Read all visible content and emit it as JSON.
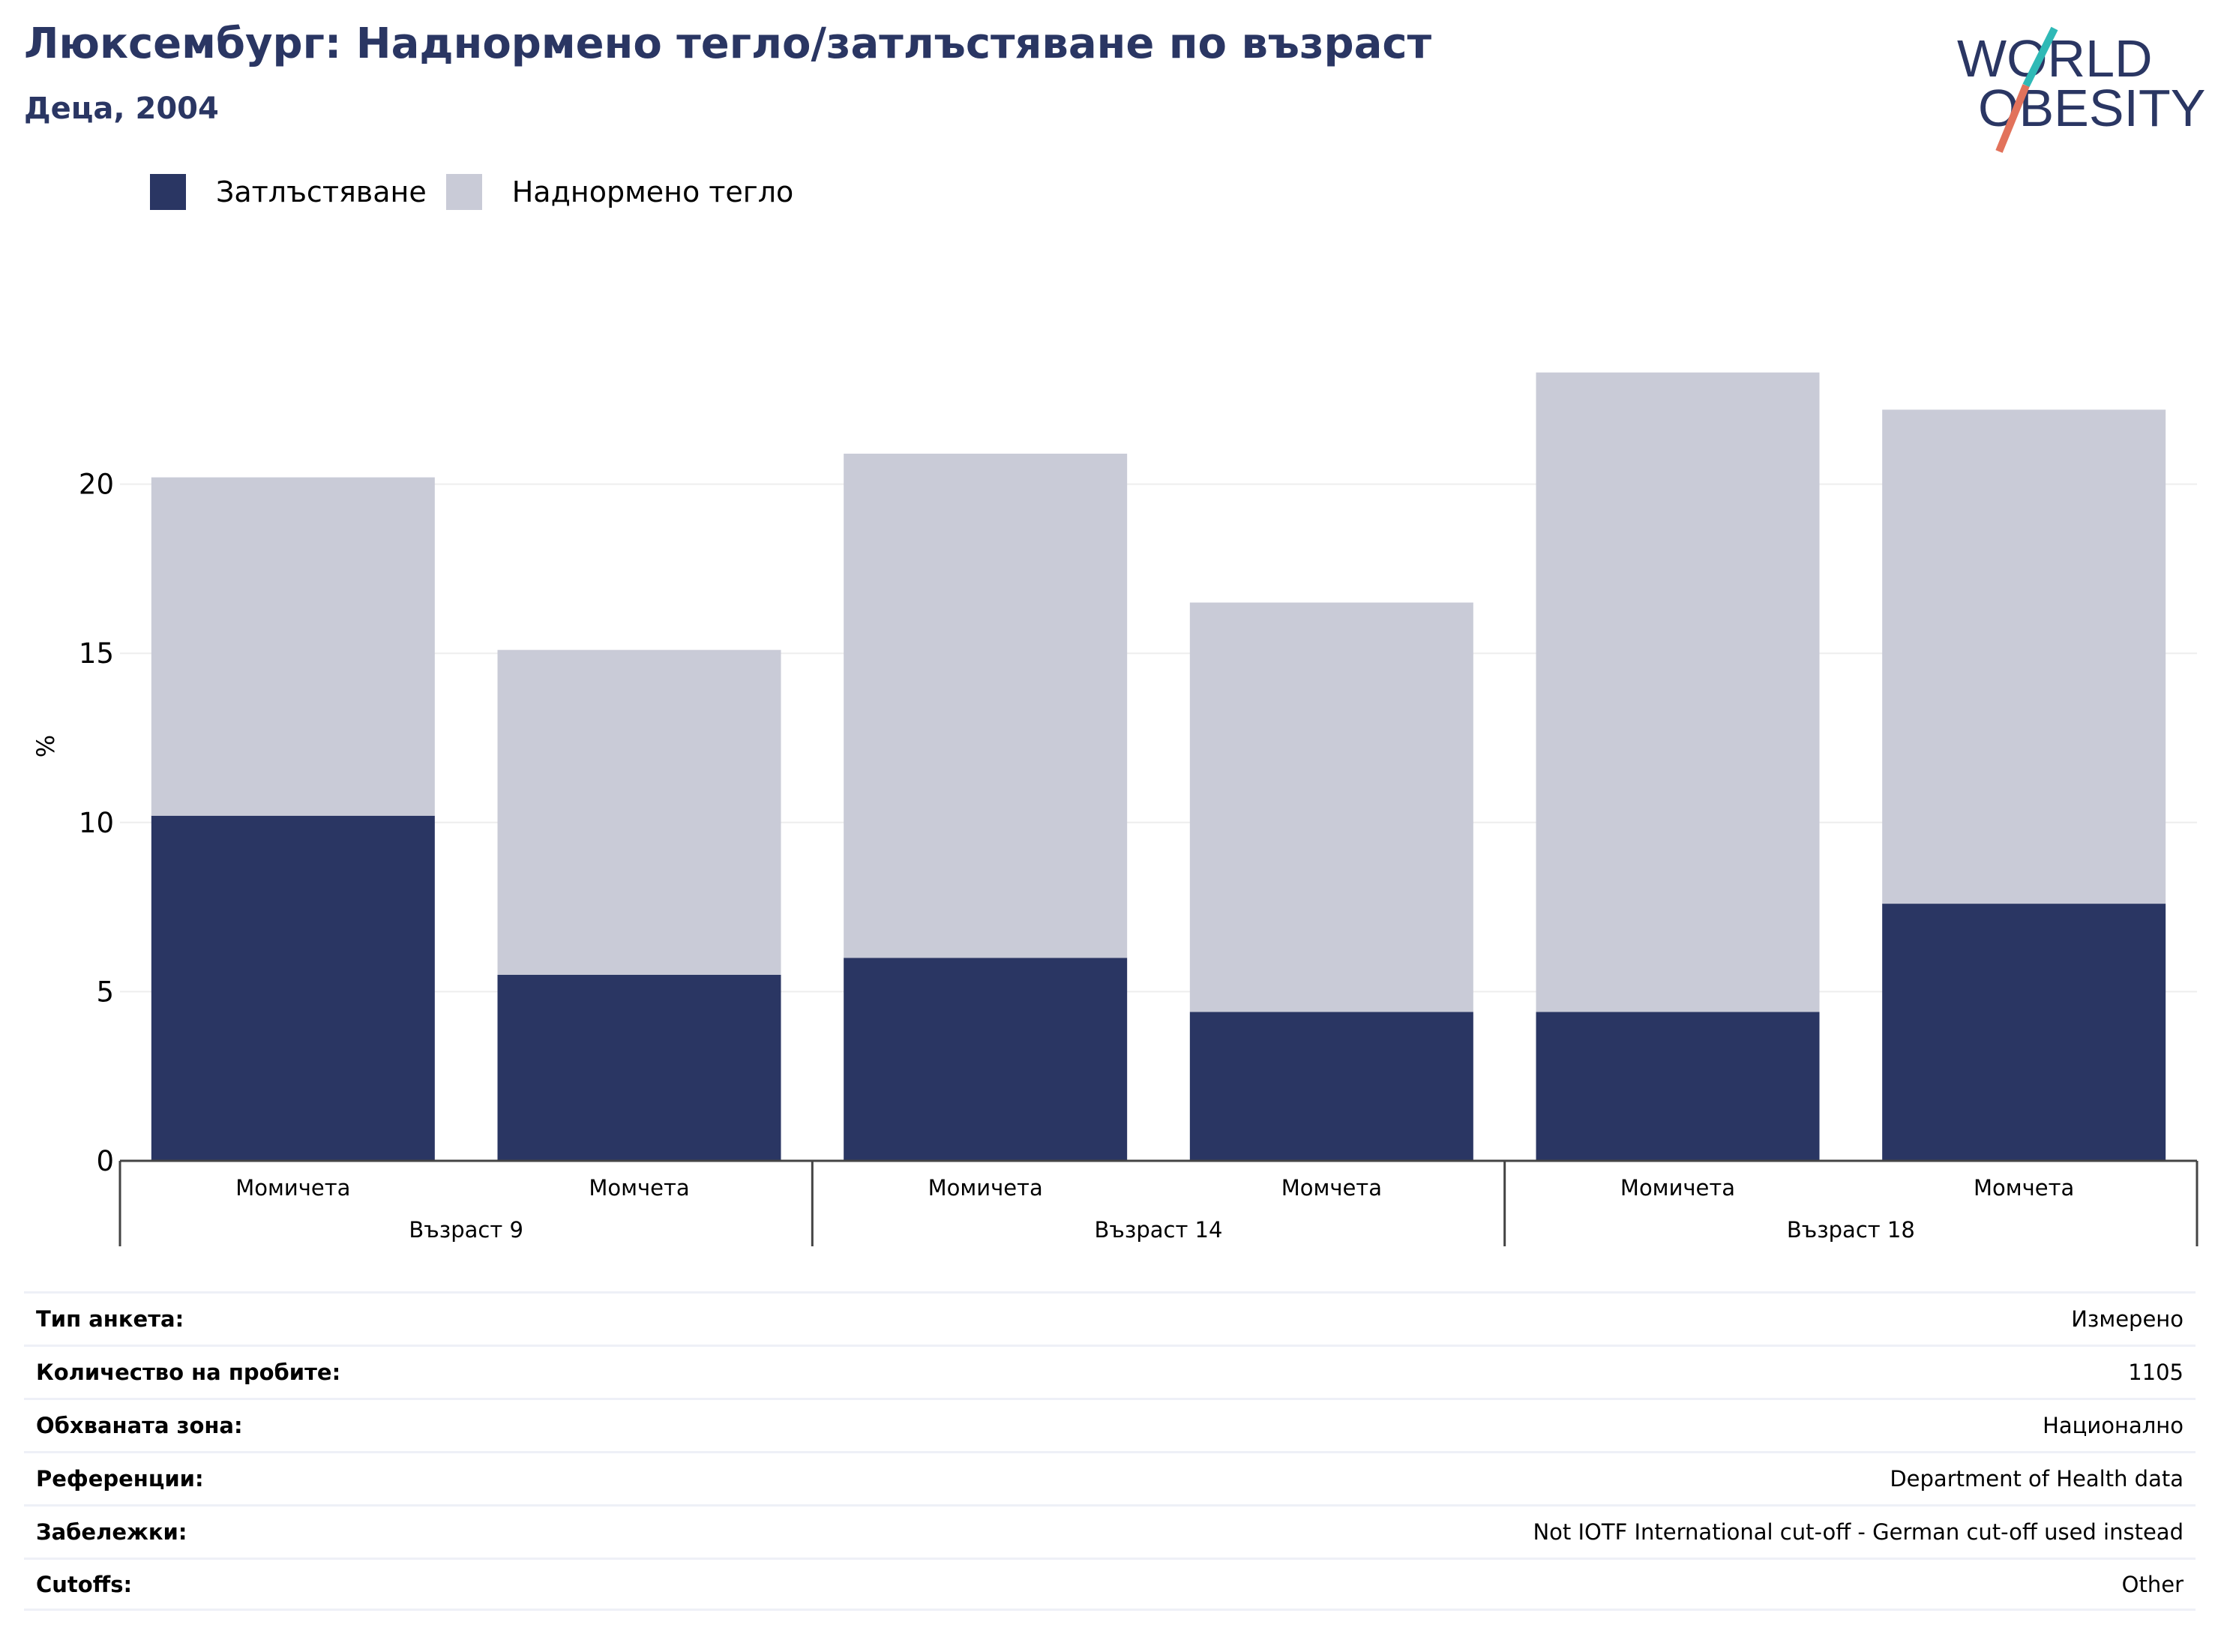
{
  "header": {
    "title": "Люксембург: Наднормено тегло/затлъстяване по възраст",
    "subtitle": "Деца, 2004"
  },
  "logo": {
    "line1": "WORLD",
    "line2": "OBESITY"
  },
  "colors": {
    "obesity": "#2a3663",
    "overweight": "#c9cbd7",
    "title": "#2a3663",
    "grid": "#eeeeee",
    "logo_teal": "#2fb9b6",
    "logo_coral": "#e2725b"
  },
  "chart_data": {
    "type": "bar",
    "stacked": true,
    "ylabel": "%",
    "ylim": [
      0,
      25
    ],
    "yticks": [
      0,
      5,
      10,
      15,
      20
    ],
    "grid": true,
    "legend_position": "top-left",
    "groups": [
      "Възраст 9",
      "Възраст 14",
      "Възраст 18"
    ],
    "categories": [
      "Момичета",
      "Момчета",
      "Момичета",
      "Момчета",
      "Момичета",
      "Момчета"
    ],
    "category_group": [
      0,
      0,
      1,
      1,
      2,
      2
    ],
    "series": [
      {
        "name": "Затлъстяване",
        "values": [
          10.2,
          5.5,
          6.0,
          4.4,
          4.4,
          7.6
        ]
      },
      {
        "name": "Наднормено тегло",
        "values": [
          10.0,
          9.6,
          14.9,
          12.1,
          18.9,
          14.6
        ]
      }
    ]
  },
  "info_table": [
    {
      "label": "Тип анкета:",
      "value": "Измерено"
    },
    {
      "label": "Количество на пробите:",
      "value": "1105"
    },
    {
      "label": "Обхваната зона:",
      "value": "Национално"
    },
    {
      "label": "Референции:",
      "value": "Department of Health data"
    },
    {
      "label": "Забележки:",
      "value": "Not IOTF International cut-off - German cut-off used instead"
    },
    {
      "label": "Cutoffs:",
      "value": "Other"
    }
  ]
}
